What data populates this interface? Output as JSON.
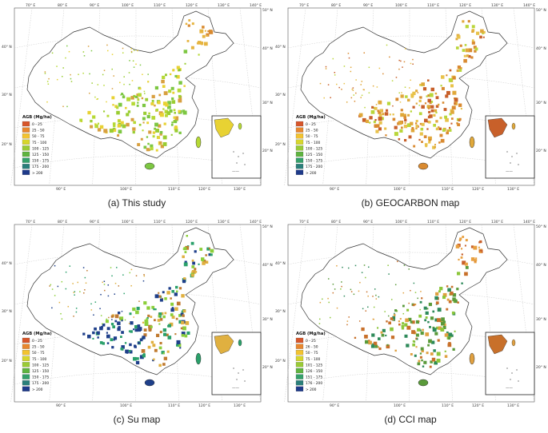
{
  "panels": [
    {
      "id": "a",
      "caption": "(a) This study",
      "legend_title": "AGB (Mg/ha)",
      "classes": [
        "0 - 25",
        "25 - 50",
        "50 - 75",
        "75 - 100",
        "100 - 125",
        "125 - 150",
        "150 - 175",
        "175 - 200",
        "> 200"
      ],
      "dominant": [
        "#7dc742",
        "#b6d935",
        "#e8d233",
        "#9acd32",
        "#d8a040"
      ]
    },
    {
      "id": "b",
      "caption": "(b) GEOCARBON map",
      "legend_title": "AGB (Mg/ha)",
      "classes": [
        "0 - 25",
        "25 - 50",
        "50 - 75",
        "75 - 100",
        "100 - 125",
        "125 - 150",
        "150 - 175",
        "175 - 200",
        "> 200"
      ],
      "dominant": [
        "#d98a30",
        "#e0a83a",
        "#c8602a",
        "#e8c24a",
        "#b9d63a"
      ]
    },
    {
      "id": "c",
      "caption": "(c) Su map",
      "legend_title": "AGB (Mg/ha)",
      "classes": [
        "0 - 25",
        "25 - 50",
        "50 - 75",
        "75 - 100",
        "100 - 125",
        "125 - 150",
        "150 - 175",
        "175 - 200",
        "> 200"
      ],
      "dominant": [
        "#1e3f8a",
        "#2aa06a",
        "#e0b040",
        "#8ccf3a",
        "#c07a30"
      ]
    },
    {
      "id": "d",
      "caption": "(d) CCI map",
      "legend_title": "AGB (Mg/ha)",
      "classes": [
        "0 - 25",
        "26 - 50",
        "50 - 75",
        "75 - 100",
        "101 - 125",
        "126 - 150",
        "151 - 175",
        "176 - 200",
        "> 200"
      ],
      "dominant": [
        "#5a9a3a",
        "#e0a040",
        "#c8702a",
        "#8cc63a",
        "#2e8a5a"
      ]
    }
  ],
  "legend_colors": [
    "#d7562b",
    "#e8872e",
    "#f3c32f",
    "#d7d62c",
    "#9acb36",
    "#5fb440",
    "#35a06a",
    "#2a7f7a",
    "#1e3a8a"
  ],
  "lon_ticks": [
    "70° E",
    "80° E",
    "90° E",
    "100° E",
    "110° E",
    "120° E",
    "130° E",
    "140° E"
  ],
  "lon_ticks_bottom": [
    "90° E",
    "100° E",
    "110° E",
    "120° E",
    "130° E"
  ],
  "lat_ticks": [
    "40° N",
    "30° N",
    "20° N"
  ],
  "lat_ticks_right": [
    "50° N",
    "40° N",
    "30° N",
    "20° N"
  ],
  "inset_scale": "——"
}
